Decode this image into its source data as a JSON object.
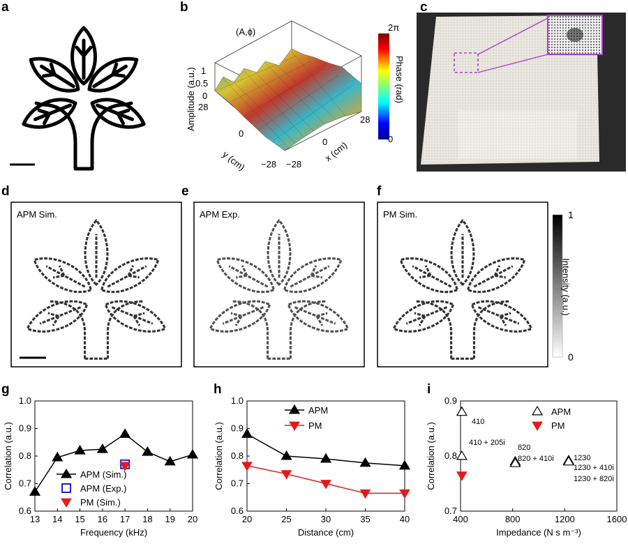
{
  "panel_letters": {
    "a": "a",
    "b": "b",
    "c": "c",
    "d": "d",
    "e": "e",
    "f": "f",
    "g": "g",
    "h": "h",
    "i": "i"
  },
  "panel_b": {
    "title": "(A,ϕ)",
    "z_label": "Amplitude (a.u.)",
    "z_ticks": [
      "1",
      "0.5",
      "0"
    ],
    "y_label": "y (cm)",
    "y_ticks": [
      "28",
      "0",
      "−28"
    ],
    "x_label": "x (cm)",
    "x_ticks": [
      "−28",
      "0",
      "28"
    ],
    "colorbar_label": "Phase (rad)",
    "colorbar_max": "2π",
    "colorbar_min": "0"
  },
  "panel_d": {
    "label": "APM Sim."
  },
  "panel_e": {
    "label": "APM Exp."
  },
  "panel_f": {
    "label": "PM Sim."
  },
  "intensity_bar": {
    "label": "Intensity (a.u.)",
    "max": "1",
    "min": "0"
  },
  "chart_data": [
    {
      "panel": "g",
      "type": "line",
      "xlabel": "Frequency (kHz)",
      "ylabel": "Correlation (a.u.)",
      "xlim": [
        13,
        20
      ],
      "ylim": [
        0.6,
        1.0
      ],
      "xticks": [
        "13",
        "14",
        "15",
        "16",
        "17",
        "18",
        "19",
        "20"
      ],
      "yticks": [
        "0.6",
        "0.7",
        "0.8",
        "0.9",
        "1.0"
      ],
      "series": [
        {
          "name": "APM (Sim.)",
          "marker": "triangle-up",
          "color": "#000000",
          "line": true,
          "x": [
            13,
            14,
            15,
            16,
            17,
            18,
            19,
            20
          ],
          "y": [
            0.67,
            0.795,
            0.82,
            0.825,
            0.88,
            0.815,
            0.78,
            0.805
          ]
        },
        {
          "name": "APM (Exp.)",
          "marker": "square-open",
          "color": "#1f1fd6",
          "line": false,
          "x": [
            17
          ],
          "y": [
            0.77
          ]
        },
        {
          "name": "PM (Sim.)",
          "marker": "triangle-down",
          "color": "#e31a1c",
          "line": false,
          "x": [
            17
          ],
          "y": [
            0.765
          ]
        }
      ]
    },
    {
      "panel": "h",
      "type": "line",
      "xlabel": "Distance (cm)",
      "ylabel": "Correlation (a.u.)",
      "xlim": [
        20,
        40
      ],
      "ylim": [
        0.6,
        1.0
      ],
      "xticks": [
        "20",
        "25",
        "30",
        "35",
        "40"
      ],
      "yticks": [
        "0.6",
        "0.7",
        "0.8",
        "0.9",
        "1.0"
      ],
      "series": [
        {
          "name": "APM",
          "marker": "triangle-up",
          "color": "#000000",
          "line": true,
          "x": [
            20,
            25,
            30,
            35,
            40
          ],
          "y": [
            0.88,
            0.8,
            0.79,
            0.775,
            0.765
          ]
        },
        {
          "name": "PM",
          "marker": "triangle-down",
          "color": "#e31a1c",
          "line": true,
          "x": [
            20,
            25,
            30,
            35,
            40
          ],
          "y": [
            0.765,
            0.735,
            0.7,
            0.665,
            0.665
          ]
        }
      ]
    },
    {
      "panel": "i",
      "type": "scatter",
      "xlabel": "Impedance (N s m⁻³)",
      "ylabel": "Correlation (a.u.)",
      "xlim": [
        400,
        1600
      ],
      "ylim": [
        0.7,
        0.9
      ],
      "xticks": [
        "400",
        "800",
        "1200",
        "1600"
      ],
      "yticks": [
        "0.7",
        "0.8",
        "0.9"
      ],
      "series": [
        {
          "name": "APM",
          "marker": "triangle-up-open",
          "color": "#000000",
          "line": false,
          "x": [
            410,
            410,
            820,
            820,
            1230,
            1230,
            1230
          ],
          "y": [
            0.88,
            0.8,
            0.79,
            0.787,
            0.792,
            0.791,
            0.79
          ]
        },
        {
          "name": "PM",
          "marker": "triangle-down",
          "color": "#e31a1c",
          "line": false,
          "x": [
            410
          ],
          "y": [
            0.765
          ]
        }
      ],
      "annotations": [
        "410",
        "410 + 205i",
        "820",
        "820 + 410i",
        "1230",
        "1230 + 410i",
        "1230 + 820i"
      ]
    }
  ]
}
